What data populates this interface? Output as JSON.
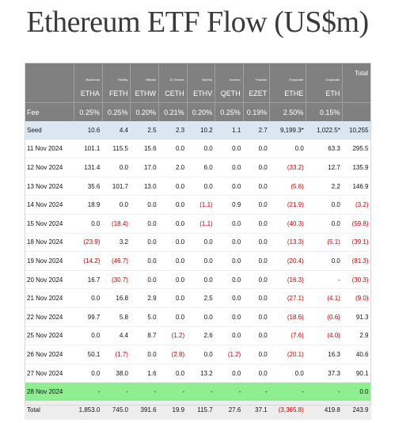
{
  "title": "Ethereum ETF Flow (US$m)",
  "issuers": [
    "",
    "Blackrock",
    "Fidelity",
    "Bitwise",
    "21 Shares",
    "VanEck",
    "Invesco",
    "Franklin",
    "Grayscale",
    "Grayscale",
    "Total"
  ],
  "tickers": [
    "",
    "ETHA",
    "FETH",
    "ETHW",
    "CETH",
    "ETHV",
    "QETH",
    "EZET",
    "ETHE",
    "ETH",
    ""
  ],
  "fee": [
    "Fee",
    "0.25%",
    "0.25%",
    "0.20%",
    "0.21%",
    "0.20%",
    "0.25%",
    "0.19%",
    "2.50%",
    "0.15%",
    ""
  ],
  "rows": [
    {
      "style": "seed",
      "cells": [
        "Seed",
        "10.6",
        "4.4",
        "2.5",
        "2.3",
        "10.2",
        "1.1",
        "2.7",
        "9,199.3*",
        "1,022.5*",
        "10,255"
      ]
    },
    {
      "style": "",
      "cells": [
        "11 Nov 2024",
        "101.1",
        "115.5",
        "15.6",
        "0.0",
        "0.0",
        "0.0",
        "0.0",
        "0.0",
        "63.3",
        "295.5"
      ]
    },
    {
      "style": "",
      "cells": [
        "12 Nov 2024",
        "131.4",
        "0.0",
        "17.0",
        "2.0",
        "6.0",
        "0.0",
        "0.0",
        "(33.2)",
        "12.7",
        "135.9"
      ]
    },
    {
      "style": "",
      "cells": [
        "13 Nov 2024",
        "35.6",
        "101.7",
        "13.0",
        "0.0",
        "0.0",
        "0.0",
        "0.0",
        "(5.6)",
        "2.2",
        "146.9"
      ]
    },
    {
      "style": "",
      "cells": [
        "14 Nov 2024",
        "18.9",
        "0.0",
        "0.0",
        "0.0",
        "(1.1)",
        "0.9",
        "0.0",
        "(21.9)",
        "0.0",
        "(3.2)"
      ]
    },
    {
      "style": "",
      "cells": [
        "15 Nov 2024",
        "0.0",
        "(18.4)",
        "0.0",
        "0.0",
        "(1.1)",
        "0.0",
        "0.0",
        "(40.3)",
        "0.0",
        "(59.8)"
      ]
    },
    {
      "style": "",
      "cells": [
        "18 Nov 2024",
        "(23.9)",
        "3.2",
        "0.0",
        "0.0",
        "0.0",
        "0.0",
        "0.0",
        "(13.3)",
        "(5.1)",
        "(39.1)"
      ]
    },
    {
      "style": "",
      "cells": [
        "19 Nov 2024",
        "(14.2)",
        "(46.7)",
        "0.0",
        "0.0",
        "0.0",
        "0.0",
        "0.0",
        "(20.4)",
        "0.0",
        "(81.3)"
      ]
    },
    {
      "style": "",
      "cells": [
        "20 Nov 2024",
        "16.7",
        "(30.7)",
        "0.0",
        "0.0",
        "0.0",
        "0.0",
        "0.0",
        "(16.3)",
        "-",
        "(30.3)"
      ]
    },
    {
      "style": "",
      "cells": [
        "21 Nov 2024",
        "0.0",
        "16.8",
        "2.9",
        "0.0",
        "2.5",
        "0.0",
        "0.0",
        "(27.1)",
        "(4.1)",
        "(9.0)"
      ]
    },
    {
      "style": "",
      "cells": [
        "22 Nov 2024",
        "99.7",
        "5.8",
        "5.0",
        "0.0",
        "0.0",
        "0.0",
        "0.0",
        "(18.6)",
        "(0.6)",
        "91.3"
      ]
    },
    {
      "style": "",
      "cells": [
        "25 Nov 2024",
        "0.0",
        "4.4",
        "8.7",
        "(1.2)",
        "2.6",
        "0.0",
        "0.0",
        "(7.6)",
        "(4.0)",
        "2.9"
      ]
    },
    {
      "style": "",
      "cells": [
        "26 Nov 2024",
        "50.1",
        "(1.7)",
        "0.0",
        "(2.8)",
        "0.0",
        "(1.2)",
        "0.0",
        "(20.1)",
        "16.3",
        "40.6"
      ]
    },
    {
      "style": "",
      "cells": [
        "27 Nov 2024",
        "0.0",
        "38.0",
        "1.6",
        "0.0",
        "13.2",
        "0.0",
        "0.0",
        "0.0",
        "37.3",
        "90.1"
      ]
    },
    {
      "style": "green",
      "cells": [
        "28 Nov 2024",
        "-",
        "-",
        "-",
        "-",
        "-",
        "-",
        "-",
        "-",
        "-",
        "0.0"
      ]
    },
    {
      "style": "totalrow",
      "cells": [
        "Total",
        "1,853.0",
        "745.0",
        "391.6",
        "19.9",
        "115.7",
        "27.6",
        "37.1",
        "(3,365.8)",
        "419.8",
        "243.9"
      ]
    }
  ]
}
